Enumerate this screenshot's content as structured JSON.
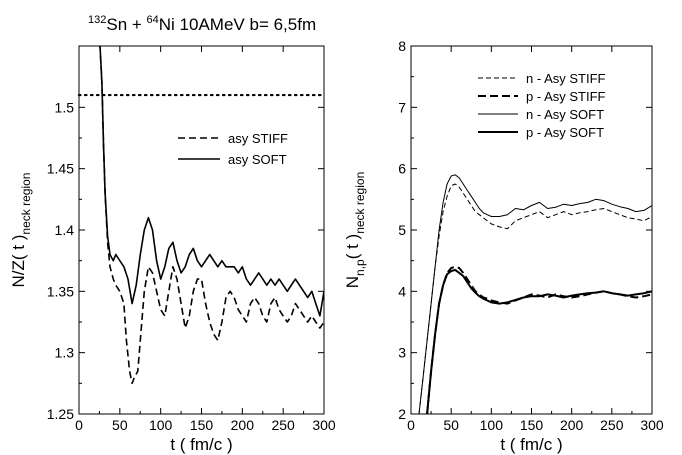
{
  "chart_data": [
    {
      "type": "line",
      "title": {
        "a1": "132",
        "e1": "Sn + ",
        "a2": "64",
        "e2": "Ni  10AMeV  b= 6,5fm"
      },
      "xlabel": "t ( fm/c )",
      "ylabel": {
        "main": "N/Z( t )",
        "sub": "neck region"
      },
      "xlim": [
        0,
        300
      ],
      "ylim": [
        1.25,
        1.55
      ],
      "xticks": [
        "0",
        "50",
        "100",
        "150",
        "200",
        "250",
        "300"
      ],
      "yticks": [
        "1.25",
        "1.3",
        "1.35",
        "1.4",
        "1.45",
        "1.5"
      ],
      "legend_position": "upper-right",
      "reference_line": {
        "y": 1.51,
        "style": "dotted"
      },
      "series": [
        {
          "name": "asy STIFF",
          "style": "dashed",
          "x": [
            25,
            28,
            30,
            32,
            35,
            38,
            42,
            45,
            50,
            55,
            58,
            62,
            65,
            68,
            72,
            75,
            80,
            85,
            90,
            95,
            100,
            105,
            110,
            115,
            120,
            125,
            130,
            135,
            140,
            145,
            150,
            155,
            160,
            165,
            170,
            175,
            180,
            185,
            190,
            195,
            200,
            205,
            210,
            215,
            220,
            225,
            230,
            235,
            240,
            245,
            250,
            255,
            260,
            265,
            270,
            275,
            280,
            285,
            290,
            295,
            300
          ],
          "y": [
            1.56,
            1.52,
            1.47,
            1.43,
            1.39,
            1.37,
            1.36,
            1.355,
            1.35,
            1.34,
            1.31,
            1.285,
            1.275,
            1.28,
            1.285,
            1.31,
            1.35,
            1.37,
            1.365,
            1.35,
            1.335,
            1.33,
            1.35,
            1.37,
            1.36,
            1.34,
            1.32,
            1.33,
            1.35,
            1.36,
            1.36,
            1.34,
            1.325,
            1.315,
            1.31,
            1.325,
            1.345,
            1.35,
            1.345,
            1.335,
            1.33,
            1.325,
            1.34,
            1.345,
            1.34,
            1.33,
            1.325,
            1.34,
            1.345,
            1.335,
            1.33,
            1.325,
            1.33,
            1.34,
            1.335,
            1.33,
            1.325,
            1.33,
            1.325,
            1.32,
            1.325
          ]
        },
        {
          "name": "asy SOFT",
          "style": "solid",
          "x": [
            25,
            28,
            30,
            32,
            35,
            38,
            42,
            45,
            50,
            55,
            60,
            65,
            70,
            75,
            80,
            85,
            90,
            95,
            100,
            105,
            110,
            115,
            120,
            125,
            130,
            135,
            140,
            145,
            150,
            155,
            160,
            165,
            170,
            175,
            180,
            185,
            190,
            195,
            200,
            205,
            210,
            215,
            220,
            225,
            230,
            235,
            240,
            245,
            250,
            255,
            260,
            265,
            270,
            275,
            280,
            285,
            290,
            295,
            300
          ],
          "y": [
            1.56,
            1.52,
            1.47,
            1.43,
            1.395,
            1.38,
            1.375,
            1.38,
            1.375,
            1.37,
            1.36,
            1.34,
            1.355,
            1.38,
            1.4,
            1.41,
            1.4,
            1.375,
            1.36,
            1.37,
            1.385,
            1.39,
            1.375,
            1.365,
            1.37,
            1.38,
            1.385,
            1.375,
            1.37,
            1.375,
            1.38,
            1.375,
            1.37,
            1.375,
            1.37,
            1.37,
            1.37,
            1.365,
            1.37,
            1.36,
            1.355,
            1.36,
            1.365,
            1.36,
            1.355,
            1.36,
            1.355,
            1.36,
            1.355,
            1.35,
            1.355,
            1.36,
            1.355,
            1.35,
            1.345,
            1.35,
            1.34,
            1.33,
            1.35
          ]
        }
      ]
    },
    {
      "type": "line",
      "xlabel": "t ( fm/c )",
      "ylabel": {
        "main": "N",
        "main_sub": "n,p",
        "paren": "( t )",
        "sub": "neck region"
      },
      "xlim": [
        0,
        300
      ],
      "ylim": [
        2,
        8
      ],
      "xticks": [
        "0",
        "50",
        "100",
        "150",
        "200",
        "250",
        "300"
      ],
      "yticks": [
        "2",
        "3",
        "4",
        "5",
        "6",
        "7",
        "8"
      ],
      "legend_position": "upper-right",
      "series": [
        {
          "name": "n - Asy STIFF",
          "style": "dashed-thin",
          "x": [
            10,
            15,
            20,
            25,
            30,
            35,
            40,
            45,
            50,
            55,
            60,
            65,
            70,
            75,
            80,
            85,
            90,
            95,
            100,
            110,
            120,
            130,
            140,
            150,
            160,
            170,
            180,
            190,
            200,
            210,
            220,
            230,
            240,
            250,
            260,
            270,
            280,
            290,
            300
          ],
          "y": [
            2,
            2.6,
            3.2,
            3.8,
            4.4,
            4.9,
            5.3,
            5.55,
            5.72,
            5.75,
            5.7,
            5.6,
            5.5,
            5.4,
            5.3,
            5.25,
            5.2,
            5.15,
            5.1,
            5.05,
            5.02,
            5.15,
            5.2,
            5.25,
            5.3,
            5.2,
            5.25,
            5.3,
            5.25,
            5.28,
            5.3,
            5.33,
            5.35,
            5.3,
            5.25,
            5.2,
            5.18,
            5.15,
            5.22
          ]
        },
        {
          "name": "p - Asy STIFF",
          "style": "dashed-thick",
          "x": [
            20,
            25,
            30,
            35,
            40,
            45,
            50,
            55,
            60,
            65,
            70,
            75,
            80,
            85,
            90,
            95,
            100,
            110,
            120,
            130,
            140,
            150,
            160,
            170,
            180,
            190,
            200,
            210,
            220,
            230,
            240,
            250,
            260,
            270,
            280,
            290,
            300
          ],
          "y": [
            2,
            2.7,
            3.3,
            3.8,
            4.1,
            4.3,
            4.38,
            4.4,
            4.38,
            4.3,
            4.2,
            4.1,
            4.0,
            3.95,
            3.9,
            3.88,
            3.85,
            3.82,
            3.8,
            3.85,
            3.9,
            3.95,
            3.93,
            3.9,
            3.95,
            3.92,
            3.9,
            3.92,
            3.95,
            3.98,
            4.0,
            3.97,
            3.95,
            3.92,
            3.9,
            3.92,
            3.95
          ]
        },
        {
          "name": "n - Asy SOFT",
          "style": "solid-thin",
          "x": [
            10,
            15,
            20,
            25,
            30,
            35,
            40,
            45,
            50,
            55,
            60,
            65,
            70,
            75,
            80,
            85,
            90,
            95,
            100,
            110,
            120,
            130,
            140,
            150,
            160,
            170,
            180,
            190,
            200,
            210,
            220,
            230,
            240,
            250,
            260,
            270,
            280,
            290,
            300
          ],
          "y": [
            2,
            2.6,
            3.2,
            3.8,
            4.4,
            5.0,
            5.45,
            5.75,
            5.88,
            5.9,
            5.85,
            5.75,
            5.65,
            5.55,
            5.45,
            5.35,
            5.28,
            5.25,
            5.22,
            5.22,
            5.25,
            5.35,
            5.33,
            5.4,
            5.45,
            5.35,
            5.37,
            5.42,
            5.4,
            5.43,
            5.45,
            5.5,
            5.48,
            5.42,
            5.38,
            5.35,
            5.3,
            5.32,
            5.4
          ]
        },
        {
          "name": "p - Asy SOFT",
          "style": "solid-thick",
          "x": [
            20,
            25,
            30,
            35,
            40,
            45,
            50,
            55,
            60,
            65,
            70,
            75,
            80,
            85,
            90,
            95,
            100,
            110,
            120,
            130,
            140,
            150,
            160,
            170,
            180,
            190,
            200,
            210,
            220,
            230,
            240,
            250,
            260,
            270,
            280,
            290,
            300
          ],
          "y": [
            2,
            2.7,
            3.3,
            3.8,
            4.1,
            4.28,
            4.33,
            4.35,
            4.3,
            4.25,
            4.15,
            4.05,
            3.98,
            3.92,
            3.88,
            3.85,
            3.82,
            3.8,
            3.82,
            3.86,
            3.9,
            3.92,
            3.92,
            3.95,
            3.93,
            3.9,
            3.93,
            3.95,
            3.97,
            3.98,
            4.0,
            3.97,
            3.95,
            3.93,
            3.95,
            3.97,
            4.0
          ]
        }
      ]
    }
  ]
}
